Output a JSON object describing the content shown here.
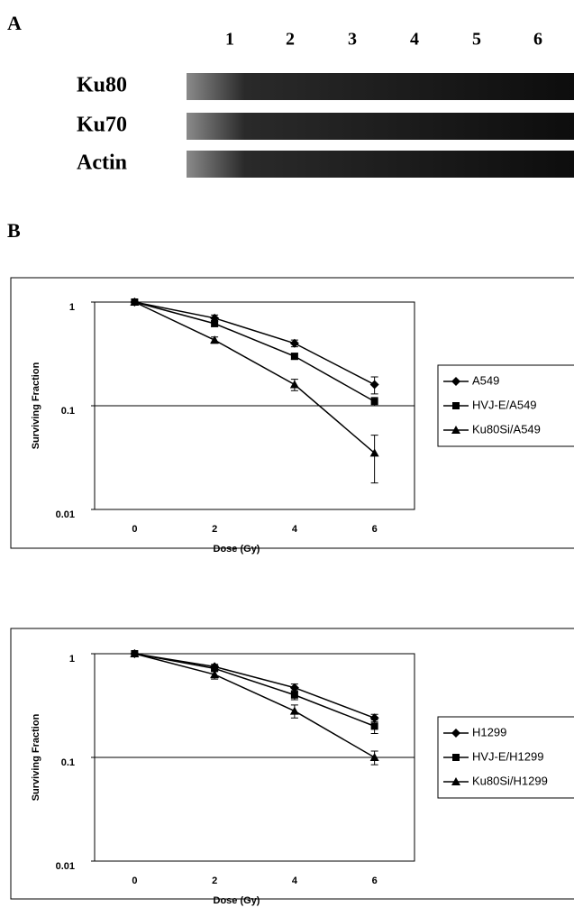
{
  "panel_a": {
    "label": "A",
    "lanes": [
      "1",
      "2",
      "3",
      "4",
      "5",
      "6"
    ],
    "rows": [
      "Ku80",
      "Ku70",
      "Actin"
    ]
  },
  "panel_b_label": "B",
  "chart_data": [
    {
      "type": "line",
      "x_label": "Dose (Gy)",
      "y_label": "Surviving Fraction",
      "categories": [
        "0",
        "2",
        "4",
        "6"
      ],
      "log_y": true,
      "ylim": [
        0.01,
        1
      ],
      "yticks": [
        0.01,
        0.1,
        1
      ],
      "grid_at": [
        0.1
      ],
      "series": [
        {
          "name": "A549",
          "color": "#000000",
          "marker": "diamond",
          "values": [
            1,
            0.7,
            0.4,
            0.16
          ],
          "errors": [
            0,
            0.05,
            0.03,
            0.03
          ]
        },
        {
          "name": "HVJ-E/A549",
          "color": "#000000",
          "marker": "square",
          "values": [
            1,
            0.62,
            0.3,
            0.11
          ],
          "errors": [
            0,
            0.04,
            0.02,
            0.01
          ]
        },
        {
          "name": "Ku80Si/A549",
          "color": "#000000",
          "marker": "triangle",
          "values": [
            1,
            0.43,
            0.16,
            0.035
          ],
          "errors": [
            0,
            0.03,
            0.02,
            0.017
          ]
        }
      ]
    },
    {
      "type": "line",
      "x_label": "Dose (Gy)",
      "y_label": "Surviving Fraction",
      "categories": [
        "0",
        "2",
        "4",
        "6"
      ],
      "log_y": true,
      "ylim": [
        0.01,
        1
      ],
      "yticks": [
        0.01,
        0.1,
        1
      ],
      "grid_at": [
        0.1
      ],
      "series": [
        {
          "name": "H1299",
          "color": "#000000",
          "marker": "diamond",
          "values": [
            1,
            0.75,
            0.47,
            0.24
          ],
          "errors": [
            0,
            0.04,
            0.04,
            0.02
          ]
        },
        {
          "name": "HVJ-E/H1299",
          "color": "#000000",
          "marker": "square",
          "values": [
            1,
            0.72,
            0.4,
            0.2
          ],
          "errors": [
            0,
            0.04,
            0.04,
            0.03
          ]
        },
        {
          "name": "Ku80Si/H1299",
          "color": "#000000",
          "marker": "triangle",
          "values": [
            1,
            0.63,
            0.28,
            0.1
          ],
          "errors": [
            0,
            0.06,
            0.04,
            0.015
          ]
        }
      ]
    }
  ]
}
